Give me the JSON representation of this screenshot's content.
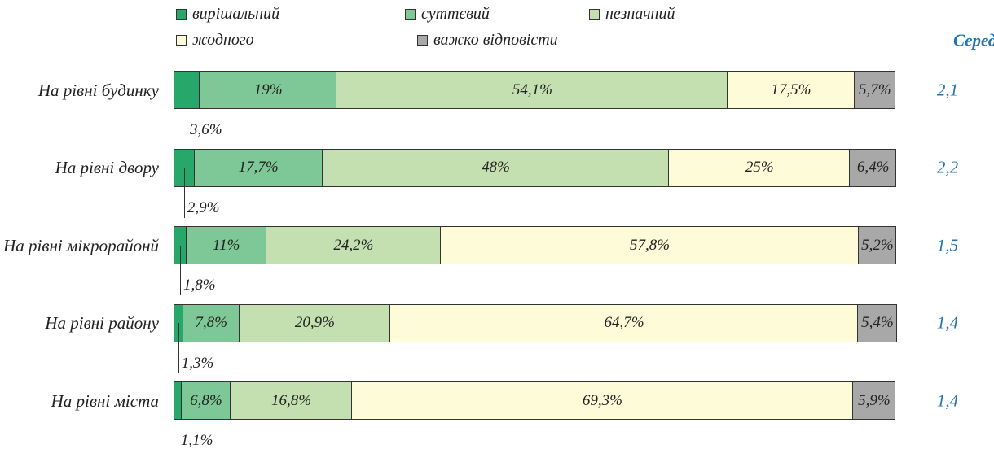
{
  "chart_data": {
    "type": "bar",
    "orientation": "horizontal",
    "stacked": true,
    "categories": [
      "На рівні будинку",
      "На рівні двору",
      "На рівні мікрорайонй",
      "На рівні району",
      "На рівні міста"
    ],
    "xlim": [
      0,
      100
    ],
    "series": [
      {
        "name": "вирішальний",
        "color": "#27a86a",
        "values": [
          3.6,
          2.9,
          1.8,
          1.3,
          1.1
        ],
        "value_labels": [
          "3,6%",
          "2,9%",
          "1,8%",
          "1,3%",
          "1,1%"
        ]
      },
      {
        "name": "суттєвий",
        "color": "#7dc896",
        "values": [
          19,
          17.7,
          11,
          7.8,
          6.8
        ],
        "value_labels": [
          "19%",
          "17,7%",
          "11%",
          "7,8%",
          "6,8%"
        ]
      },
      {
        "name": "незначний",
        "color": "#c5e0b0",
        "values": [
          54.1,
          48,
          24.2,
          20.9,
          16.8
        ],
        "value_labels": [
          "54,1%",
          "48%",
          "24,2%",
          "20,9%",
          "16,8%"
        ]
      },
      {
        "name": "жодного",
        "color": "#fefbd8",
        "values": [
          17.5,
          25,
          57.8,
          64.7,
          69.3
        ],
        "value_labels": [
          "17,5%",
          "25%",
          "57,8%",
          "64,7%",
          "69,3%"
        ]
      },
      {
        "name": "важко відповісти",
        "color": "#a8a8a8",
        "values": [
          5.7,
          6.4,
          5.2,
          5.4,
          5.9
        ],
        "value_labels": [
          "5,7%",
          "6,4%",
          "5,2%",
          "5,4%",
          "5,9%"
        ]
      }
    ],
    "average": {
      "title": "Середнє",
      "values": [
        2.1,
        2.2,
        1.5,
        1.4,
        1.4
      ],
      "value_labels": [
        "2,1",
        "2,2",
        "1,5",
        "1,4",
        "1,4"
      ]
    }
  }
}
